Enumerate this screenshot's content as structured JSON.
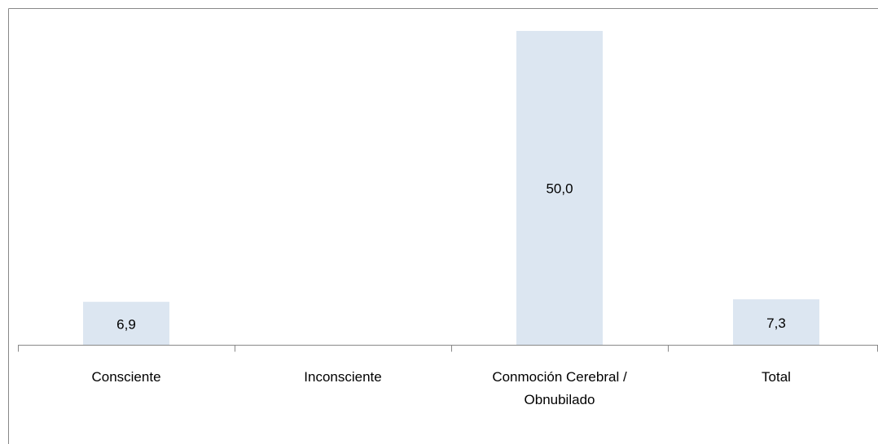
{
  "chart_data": {
    "type": "bar",
    "categories": [
      "Consciente",
      "Inconsciente",
      "Conmoción Cerebral / Obnubilado",
      "Total"
    ],
    "values": [
      6.9,
      null,
      50.0,
      7.3
    ],
    "value_labels": [
      "6,9",
      null,
      "50,0",
      "7,3"
    ],
    "color": "#dce6f1",
    "ylim": [
      0,
      50
    ]
  }
}
